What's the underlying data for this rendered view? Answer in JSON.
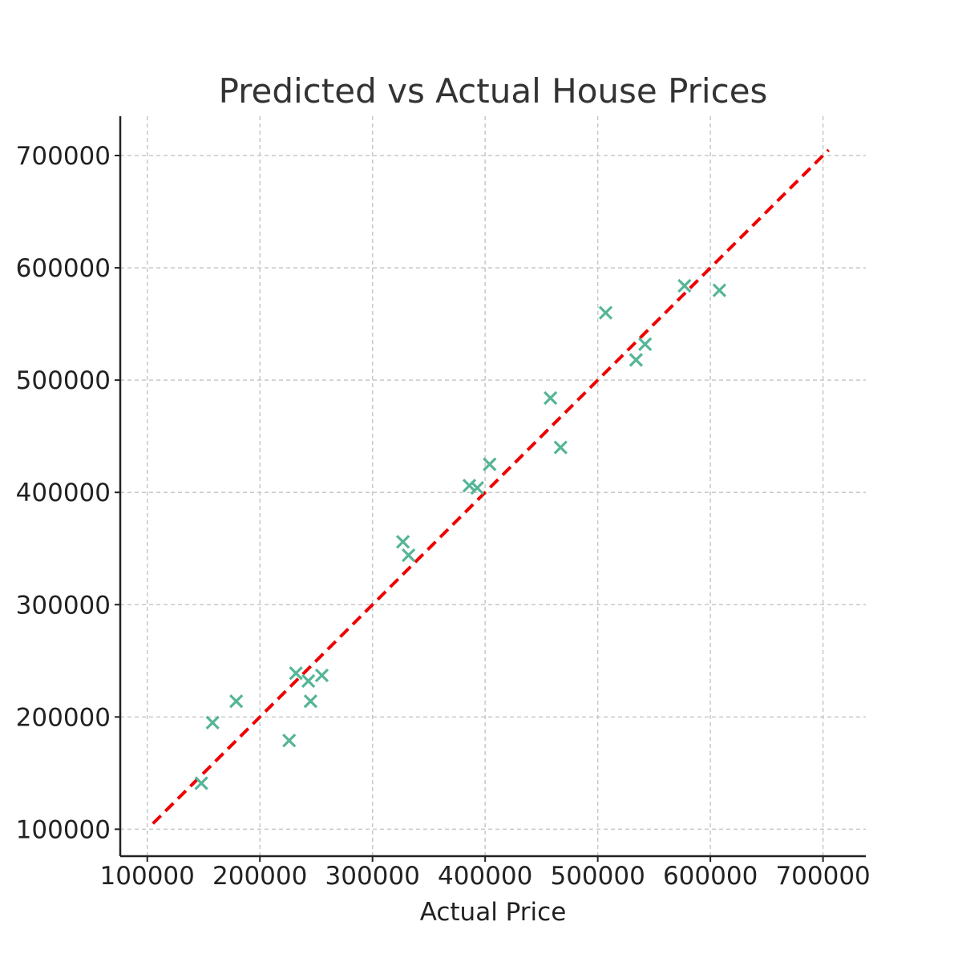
{
  "chart_data": {
    "type": "scatter",
    "title": "Predicted vs Actual House Prices",
    "xlabel": "Actual Price",
    "ylabel": "",
    "xlim": [
      76000,
      738000
    ],
    "ylim": [
      76000,
      735000
    ],
    "xticks": [
      100000,
      200000,
      300000,
      400000,
      500000,
      600000,
      700000
    ],
    "yticks": [
      100000,
      200000,
      300000,
      400000,
      500000,
      600000,
      700000
    ],
    "xtick_labels": [
      "100000",
      "200000",
      "300000",
      "400000",
      "500000",
      "600000",
      "700000"
    ],
    "ytick_labels": [
      "100000",
      "200000",
      "300000",
      "400000",
      "500000",
      "600000",
      "700000"
    ],
    "grid": true,
    "marker": "x",
    "point_color": "#55b597",
    "reference_line": {
      "style": "dashed",
      "color": "#ee0000",
      "x": [
        105000,
        705000
      ],
      "y": [
        105000,
        705000
      ]
    },
    "points": [
      {
        "x": 148000,
        "y": 141000
      },
      {
        "x": 158000,
        "y": 195000
      },
      {
        "x": 179000,
        "y": 214000
      },
      {
        "x": 226000,
        "y": 179000
      },
      {
        "x": 232000,
        "y": 239000
      },
      {
        "x": 243000,
        "y": 232000
      },
      {
        "x": 245000,
        "y": 214000
      },
      {
        "x": 255000,
        "y": 237000
      },
      {
        "x": 327000,
        "y": 356000
      },
      {
        "x": 332000,
        "y": 344000
      },
      {
        "x": 386000,
        "y": 406000
      },
      {
        "x": 393000,
        "y": 404000
      },
      {
        "x": 404000,
        "y": 425000
      },
      {
        "x": 458000,
        "y": 484000
      },
      {
        "x": 467000,
        "y": 440000
      },
      {
        "x": 507000,
        "y": 560000
      },
      {
        "x": 534000,
        "y": 518000
      },
      {
        "x": 542000,
        "y": 532000
      },
      {
        "x": 577000,
        "y": 584000
      },
      {
        "x": 608000,
        "y": 580000
      }
    ]
  }
}
